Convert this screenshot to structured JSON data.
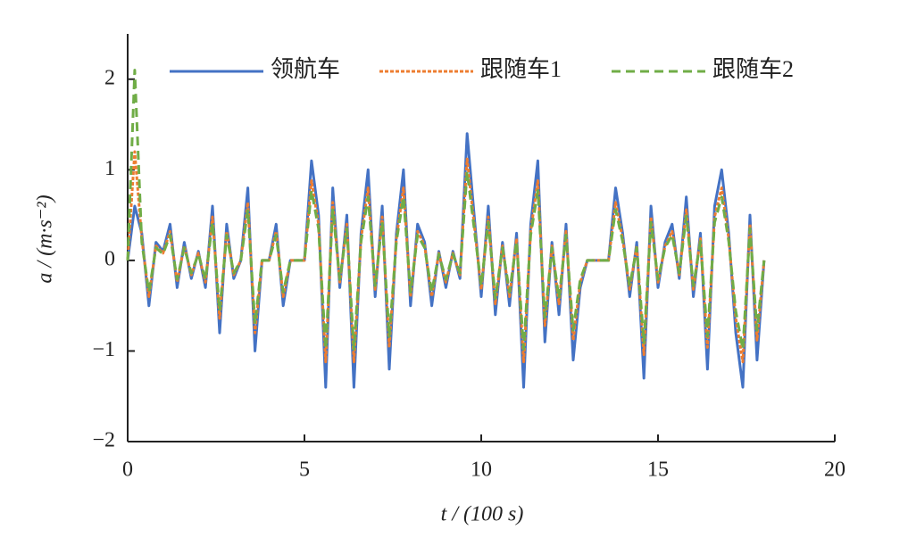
{
  "chart_data": {
    "type": "line",
    "xlabel": "t / (100 s)",
    "ylabel": "a / (m·s⁻²)",
    "x": [
      0,
      0.2,
      0.4,
      0.6,
      0.8,
      1,
      1.2,
      1.4,
      1.6,
      1.8,
      2,
      2.2,
      2.4,
      2.6,
      2.8,
      3,
      3.2,
      3.4,
      3.6,
      3.8,
      4,
      4.2,
      4.4,
      4.6,
      4.8,
      5,
      5.2,
      5.4,
      5.6,
      5.8,
      6,
      6.2,
      6.4,
      6.6,
      6.8,
      7,
      7.2,
      7.4,
      7.6,
      7.8,
      8,
      8.2,
      8.4,
      8.6,
      8.8,
      9,
      9.2,
      9.4,
      9.6,
      9.8,
      10,
      10.2,
      10.4,
      10.6,
      10.8,
      11,
      11.2,
      11.4,
      11.6,
      11.8,
      12,
      12.2,
      12.4,
      12.6,
      12.8,
      13,
      13.2,
      13.4,
      13.6,
      13.8,
      14,
      14.2,
      14.4,
      14.6,
      14.8,
      15,
      15.2,
      15.4,
      15.6,
      15.8,
      16,
      16.2,
      16.4,
      16.6,
      16.8,
      17,
      17.2,
      17.4,
      17.6,
      17.8,
      18
    ],
    "series": [
      {
        "name": "领航车",
        "color": "#4472c4",
        "dash": "solid",
        "values": [
          0,
          0.6,
          0.3,
          -0.5,
          0.2,
          0.1,
          0.4,
          -0.3,
          0.2,
          -0.2,
          0.1,
          -0.3,
          0.6,
          -0.8,
          0.4,
          -0.2,
          0,
          0.8,
          -1.0,
          0,
          0,
          0.4,
          -0.5,
          0,
          0,
          0,
          1.1,
          0.5,
          -1.4,
          0.8,
          -0.3,
          0.5,
          -1.4,
          0.3,
          1.0,
          -0.4,
          0.6,
          -1.2,
          0.3,
          1.0,
          -0.5,
          0.4,
          0.2,
          -0.5,
          0.1,
          -0.3,
          0.1,
          -0.2,
          1.4,
          0.5,
          -0.4,
          0.6,
          -0.6,
          0.2,
          -0.5,
          0.3,
          -1.4,
          0.4,
          1.1,
          -0.9,
          0.2,
          -0.6,
          0.4,
          -1.1,
          -0.3,
          0,
          0,
          0,
          0,
          0.8,
          0.3,
          -0.4,
          0.2,
          -1.3,
          0.6,
          -0.3,
          0.2,
          0.4,
          -0.2,
          0.7,
          -0.4,
          0.3,
          -1.2,
          0.6,
          1.0,
          0.3,
          -0.8,
          -1.4,
          0.5,
          -1.1,
          0
        ]
      },
      {
        "name": "跟随车1",
        "color": "#ed7d31",
        "dash": "dotted",
        "values": [
          0,
          1.2,
          0.24,
          -0.4,
          0.16,
          0.08,
          0.32,
          -0.24,
          0.16,
          -0.16,
          0.08,
          -0.24,
          0.48,
          -0.64,
          0.32,
          -0.16,
          0,
          0.64,
          -0.8,
          0,
          0,
          0.32,
          -0.4,
          0,
          0,
          0,
          0.88,
          0.4,
          -1.12,
          0.64,
          -0.24,
          0.4,
          -1.12,
          0.24,
          0.8,
          -0.32,
          0.48,
          -0.96,
          0.24,
          0.8,
          -0.4,
          0.32,
          0.16,
          -0.4,
          0.08,
          -0.24,
          0.08,
          -0.16,
          1.12,
          0.4,
          -0.32,
          0.48,
          -0.48,
          0.16,
          -0.4,
          0.24,
          -1.12,
          0.32,
          0.88,
          -0.72,
          0.16,
          -0.48,
          0.32,
          -0.88,
          -0.24,
          0,
          0,
          0,
          0,
          0.64,
          0.24,
          -0.32,
          0.16,
          -1.04,
          0.48,
          -0.24,
          0.16,
          0.32,
          -0.16,
          0.56,
          -0.32,
          0.24,
          -0.96,
          0.48,
          0.8,
          0.24,
          -0.64,
          -1.12,
          0.4,
          -0.88,
          0
        ]
      },
      {
        "name": "跟随车2",
        "color": "#70ad47",
        "dash": "dashed",
        "values": [
          0,
          2.1,
          0.2,
          -0.35,
          0.14,
          0.07,
          0.28,
          -0.21,
          0.14,
          -0.14,
          0.07,
          -0.21,
          0.42,
          -0.56,
          0.28,
          -0.14,
          0,
          0.56,
          -0.7,
          0,
          0,
          0.28,
          -0.35,
          0,
          0,
          0,
          0.77,
          0.35,
          -0.98,
          0.56,
          -0.21,
          0.35,
          -0.98,
          0.21,
          0.7,
          -0.28,
          0.42,
          -0.84,
          0.21,
          0.7,
          -0.35,
          0.28,
          0.14,
          -0.35,
          0.07,
          -0.21,
          0.07,
          -0.14,
          0.98,
          0.35,
          -0.28,
          0.42,
          -0.42,
          0.14,
          -0.35,
          0.21,
          -0.98,
          0.28,
          0.77,
          -0.63,
          0.14,
          -0.42,
          0.28,
          -0.77,
          -0.21,
          0,
          0,
          0,
          0,
          0.56,
          0.21,
          -0.28,
          0.14,
          -0.91,
          0.42,
          -0.21,
          0.14,
          0.28,
          -0.14,
          0.49,
          -0.28,
          0.21,
          -0.84,
          0.42,
          0.7,
          0.21,
          -0.56,
          -0.98,
          0.35,
          -0.77,
          0
        ]
      }
    ],
    "xlim": [
      0,
      20
    ],
    "xticks": [
      0,
      5,
      10,
      15,
      20
    ],
    "ylim": [
      -2,
      2.5
    ],
    "yticks": [
      {
        "value": -2,
        "label": "−2"
      },
      {
        "value": -1,
        "label": "−1"
      },
      0,
      1,
      2
    ],
    "grid": false,
    "legend": "top"
  }
}
